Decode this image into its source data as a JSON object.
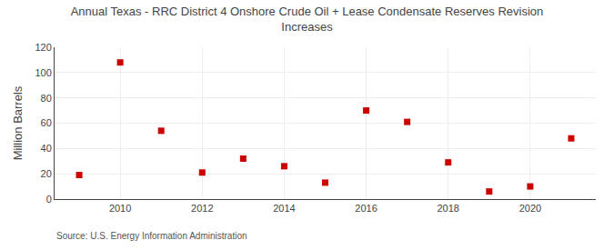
{
  "chart_data": {
    "type": "scatter",
    "title": "Annual Texas - RRC District 4 Onshore Crude Oil + Lease Condensate Reserves Revision\nIncreases",
    "ylabel": "Million Barrels",
    "annotations": [
      "Source: U.S. Energy Information Administration"
    ],
    "x": [
      2009,
      2010,
      2011,
      2012,
      2013,
      2014,
      2015,
      2016,
      2017,
      2018,
      2019,
      2020,
      2021
    ],
    "values": [
      19,
      108,
      54,
      21,
      32,
      26,
      13,
      70,
      61,
      29,
      6,
      10,
      48
    ],
    "color": "#cc0000",
    "marker": "square",
    "xlim": [
      2008.4,
      2021.6
    ],
    "ylim": [
      0,
      120
    ],
    "xticks": [
      2010,
      2012,
      2014,
      2016,
      2018,
      2020
    ],
    "yticks": [
      0,
      20,
      40,
      60,
      80,
      100,
      120
    ],
    "grid": true
  }
}
